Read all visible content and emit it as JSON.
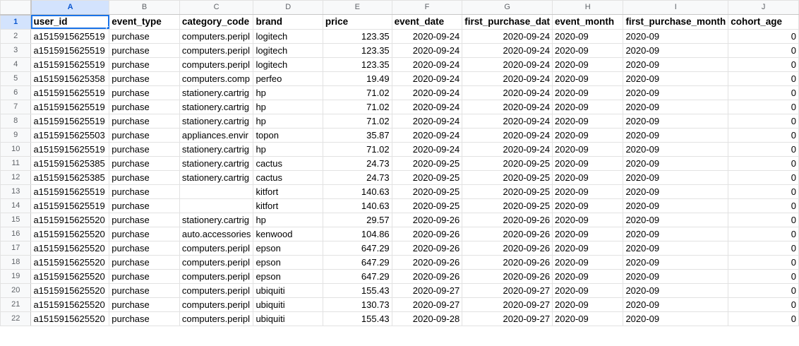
{
  "sheet": {
    "column_letters": [
      "A",
      "B",
      "C",
      "D",
      "E",
      "F",
      "G",
      "H",
      "I",
      "J"
    ],
    "header_row": {
      "number": "1",
      "cells": [
        "user_id",
        "event_type",
        "category_code",
        "brand",
        "price",
        "event_date",
        "first_purchase_dat",
        "event_month",
        "first_purchase_month",
        "cohort_age"
      ]
    },
    "rows": [
      {
        "number": "2",
        "cells": [
          "a1515915625519",
          "purchase",
          "computers.peripl",
          "logitech",
          "123.35",
          "2020-09-24",
          "2020-09-24",
          "2020-09",
          "2020-09",
          "0"
        ]
      },
      {
        "number": "3",
        "cells": [
          "a1515915625519",
          "purchase",
          "computers.peripl",
          "logitech",
          "123.35",
          "2020-09-24",
          "2020-09-24",
          "2020-09",
          "2020-09",
          "0"
        ]
      },
      {
        "number": "4",
        "cells": [
          "a1515915625519",
          "purchase",
          "computers.peripl",
          "logitech",
          "123.35",
          "2020-09-24",
          "2020-09-24",
          "2020-09",
          "2020-09",
          "0"
        ]
      },
      {
        "number": "5",
        "cells": [
          "a1515915625358",
          "purchase",
          "computers.comp",
          "perfeo",
          "19.49",
          "2020-09-24",
          "2020-09-24",
          "2020-09",
          "2020-09",
          "0"
        ]
      },
      {
        "number": "6",
        "cells": [
          "a1515915625519",
          "purchase",
          "stationery.cartrig",
          "hp",
          "71.02",
          "2020-09-24",
          "2020-09-24",
          "2020-09",
          "2020-09",
          "0"
        ]
      },
      {
        "number": "7",
        "cells": [
          "a1515915625519",
          "purchase",
          "stationery.cartrig",
          "hp",
          "71.02",
          "2020-09-24",
          "2020-09-24",
          "2020-09",
          "2020-09",
          "0"
        ]
      },
      {
        "number": "8",
        "cells": [
          "a1515915625519",
          "purchase",
          "stationery.cartrig",
          "hp",
          "71.02",
          "2020-09-24",
          "2020-09-24",
          "2020-09",
          "2020-09",
          "0"
        ]
      },
      {
        "number": "9",
        "cells": [
          "a1515915625503",
          "purchase",
          "appliances.envir",
          "topon",
          "35.87",
          "2020-09-24",
          "2020-09-24",
          "2020-09",
          "2020-09",
          "0"
        ]
      },
      {
        "number": "10",
        "cells": [
          "a1515915625519",
          "purchase",
          "stationery.cartrig",
          "hp",
          "71.02",
          "2020-09-24",
          "2020-09-24",
          "2020-09",
          "2020-09",
          "0"
        ]
      },
      {
        "number": "11",
        "cells": [
          "a1515915625385",
          "purchase",
          "stationery.cartrig",
          "cactus",
          "24.73",
          "2020-09-25",
          "2020-09-25",
          "2020-09",
          "2020-09",
          "0"
        ]
      },
      {
        "number": "12",
        "cells": [
          "a1515915625385",
          "purchase",
          "stationery.cartrig",
          "cactus",
          "24.73",
          "2020-09-25",
          "2020-09-25",
          "2020-09",
          "2020-09",
          "0"
        ]
      },
      {
        "number": "13",
        "cells": [
          "a1515915625519",
          "purchase",
          "",
          "kitfort",
          "140.63",
          "2020-09-25",
          "2020-09-25",
          "2020-09",
          "2020-09",
          "0"
        ]
      },
      {
        "number": "14",
        "cells": [
          "a1515915625519",
          "purchase",
          "",
          "kitfort",
          "140.63",
          "2020-09-25",
          "2020-09-25",
          "2020-09",
          "2020-09",
          "0"
        ]
      },
      {
        "number": "15",
        "cells": [
          "a1515915625520",
          "purchase",
          "stationery.cartrig",
          "hp",
          "29.57",
          "2020-09-26",
          "2020-09-26",
          "2020-09",
          "2020-09",
          "0"
        ]
      },
      {
        "number": "16",
        "cells": [
          "a1515915625520",
          "purchase",
          "auto.accessories",
          "kenwood",
          "104.86",
          "2020-09-26",
          "2020-09-26",
          "2020-09",
          "2020-09",
          "0"
        ]
      },
      {
        "number": "17",
        "cells": [
          "a1515915625520",
          "purchase",
          "computers.peripl",
          "epson",
          "647.29",
          "2020-09-26",
          "2020-09-26",
          "2020-09",
          "2020-09",
          "0"
        ]
      },
      {
        "number": "18",
        "cells": [
          "a1515915625520",
          "purchase",
          "computers.peripl",
          "epson",
          "647.29",
          "2020-09-26",
          "2020-09-26",
          "2020-09",
          "2020-09",
          "0"
        ]
      },
      {
        "number": "19",
        "cells": [
          "a1515915625520",
          "purchase",
          "computers.peripl",
          "epson",
          "647.29",
          "2020-09-26",
          "2020-09-26",
          "2020-09",
          "2020-09",
          "0"
        ]
      },
      {
        "number": "20",
        "cells": [
          "a1515915625520",
          "purchase",
          "computers.peripl",
          "ubiquiti",
          "155.43",
          "2020-09-27",
          "2020-09-27",
          "2020-09",
          "2020-09",
          "0"
        ]
      },
      {
        "number": "21",
        "cells": [
          "a1515915625520",
          "purchase",
          "computers.peripl",
          "ubiquiti",
          "130.73",
          "2020-09-27",
          "2020-09-27",
          "2020-09",
          "2020-09",
          "0"
        ]
      },
      {
        "number": "22",
        "cells": [
          "a1515915625520",
          "purchase",
          "computers.peripl",
          "ubiquiti",
          "155.43",
          "2020-09-28",
          "2020-09-27",
          "2020-09",
          "2020-09",
          "0"
        ]
      }
    ],
    "selected_column": "A",
    "selected_row": "1",
    "colors": {
      "selection": "#1a73e8",
      "header_bg": "#f8f9fa",
      "header_selected_bg": "#d3e3fd",
      "gridline": "#e2e2e2"
    }
  }
}
